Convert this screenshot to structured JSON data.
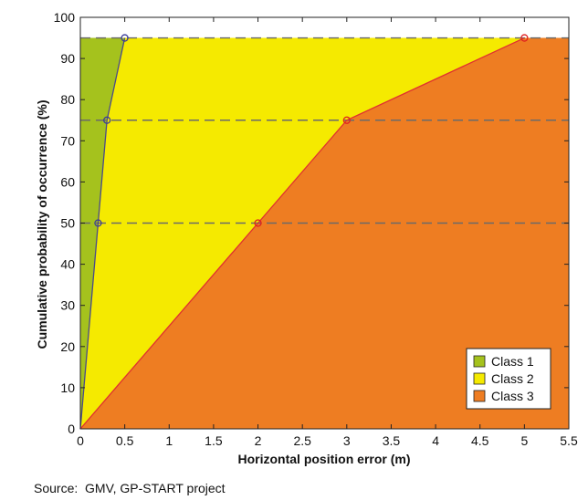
{
  "chart_data": {
    "type": "area",
    "xlabel": "Horizontal position error (m)",
    "ylabel": "Cumulative probability of occurrence (%)",
    "xlim": [
      0,
      5.5
    ],
    "ylim": [
      0,
      100
    ],
    "xticks": [
      0,
      0.5,
      1,
      1.5,
      2,
      2.5,
      3,
      3.5,
      4,
      4.5,
      5,
      5.5
    ],
    "yticks": [
      0,
      10,
      20,
      30,
      40,
      50,
      60,
      70,
      80,
      90,
      100
    ],
    "reference_lines_y": [
      50,
      75,
      95
    ],
    "series": [
      {
        "name": "Class 1",
        "color": "#a5c21d",
        "marker_color": "#3b3d9a",
        "x": [
          0,
          0.2,
          0.3,
          0.5
        ],
        "y": [
          0,
          50,
          75,
          95
        ]
      },
      {
        "name": "Class 2",
        "color": "#f5ea00",
        "marker_color": "#e02020",
        "x": [
          0,
          2,
          3,
          5
        ],
        "y": [
          0,
          50,
          75,
          95
        ]
      },
      {
        "name": "Class 3",
        "color": "#ee7d22",
        "x": [
          5.5
        ],
        "y": [
          95
        ]
      }
    ],
    "legend_position": "bottom-right",
    "grid": false
  },
  "source": "Source:  GMV, GP-START project"
}
